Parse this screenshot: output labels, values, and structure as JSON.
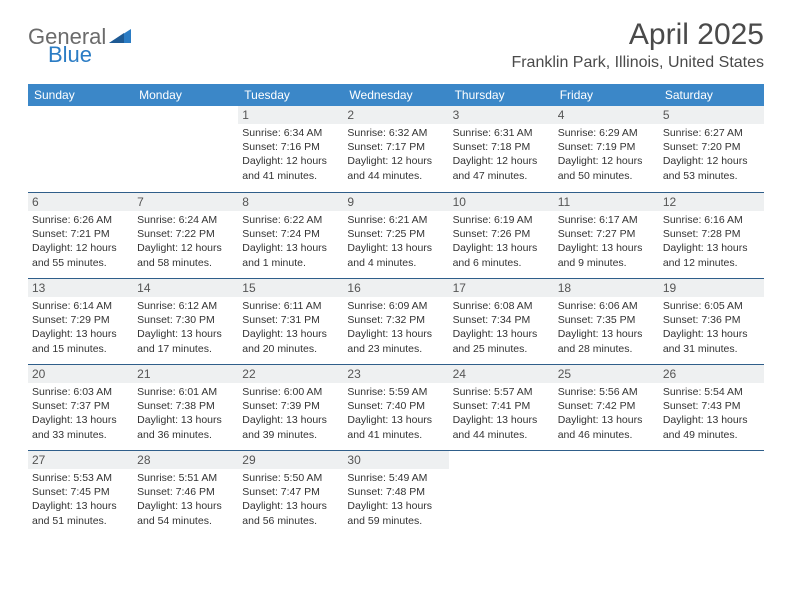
{
  "logo": {
    "word1": "General",
    "word2": "Blue"
  },
  "title": "April 2025",
  "location": "Franklin Park, Illinois, United States",
  "colors": {
    "header_bg": "#3b87c8",
    "header_text": "#ffffff",
    "daynum_bg": "#eef0f1",
    "week_border": "#2f5e8a",
    "title_color": "#4a4a4a",
    "body_text": "#333333",
    "logo_gray": "#6b6b6b",
    "logo_blue": "#2b7cc4"
  },
  "fonts": {
    "title_size_pt": 22,
    "location_size_pt": 12,
    "dow_size_pt": 9,
    "daynum_size_pt": 9,
    "body_size_pt": 8
  },
  "days_of_week": [
    "Sunday",
    "Monday",
    "Tuesday",
    "Wednesday",
    "Thursday",
    "Friday",
    "Saturday"
  ],
  "weeks": [
    [
      {
        "n": "",
        "sr": "",
        "ss": "",
        "dl": ""
      },
      {
        "n": "",
        "sr": "",
        "ss": "",
        "dl": ""
      },
      {
        "n": "1",
        "sr": "6:34 AM",
        "ss": "7:16 PM",
        "dl": "12 hours and 41 minutes."
      },
      {
        "n": "2",
        "sr": "6:32 AM",
        "ss": "7:17 PM",
        "dl": "12 hours and 44 minutes."
      },
      {
        "n": "3",
        "sr": "6:31 AM",
        "ss": "7:18 PM",
        "dl": "12 hours and 47 minutes."
      },
      {
        "n": "4",
        "sr": "6:29 AM",
        "ss": "7:19 PM",
        "dl": "12 hours and 50 minutes."
      },
      {
        "n": "5",
        "sr": "6:27 AM",
        "ss": "7:20 PM",
        "dl": "12 hours and 53 minutes."
      }
    ],
    [
      {
        "n": "6",
        "sr": "6:26 AM",
        "ss": "7:21 PM",
        "dl": "12 hours and 55 minutes."
      },
      {
        "n": "7",
        "sr": "6:24 AM",
        "ss": "7:22 PM",
        "dl": "12 hours and 58 minutes."
      },
      {
        "n": "8",
        "sr": "6:22 AM",
        "ss": "7:24 PM",
        "dl": "13 hours and 1 minute."
      },
      {
        "n": "9",
        "sr": "6:21 AM",
        "ss": "7:25 PM",
        "dl": "13 hours and 4 minutes."
      },
      {
        "n": "10",
        "sr": "6:19 AM",
        "ss": "7:26 PM",
        "dl": "13 hours and 6 minutes."
      },
      {
        "n": "11",
        "sr": "6:17 AM",
        "ss": "7:27 PM",
        "dl": "13 hours and 9 minutes."
      },
      {
        "n": "12",
        "sr": "6:16 AM",
        "ss": "7:28 PM",
        "dl": "13 hours and 12 minutes."
      }
    ],
    [
      {
        "n": "13",
        "sr": "6:14 AM",
        "ss": "7:29 PM",
        "dl": "13 hours and 15 minutes."
      },
      {
        "n": "14",
        "sr": "6:12 AM",
        "ss": "7:30 PM",
        "dl": "13 hours and 17 minutes."
      },
      {
        "n": "15",
        "sr": "6:11 AM",
        "ss": "7:31 PM",
        "dl": "13 hours and 20 minutes."
      },
      {
        "n": "16",
        "sr": "6:09 AM",
        "ss": "7:32 PM",
        "dl": "13 hours and 23 minutes."
      },
      {
        "n": "17",
        "sr": "6:08 AM",
        "ss": "7:34 PM",
        "dl": "13 hours and 25 minutes."
      },
      {
        "n": "18",
        "sr": "6:06 AM",
        "ss": "7:35 PM",
        "dl": "13 hours and 28 minutes."
      },
      {
        "n": "19",
        "sr": "6:05 AM",
        "ss": "7:36 PM",
        "dl": "13 hours and 31 minutes."
      }
    ],
    [
      {
        "n": "20",
        "sr": "6:03 AM",
        "ss": "7:37 PM",
        "dl": "13 hours and 33 minutes."
      },
      {
        "n": "21",
        "sr": "6:01 AM",
        "ss": "7:38 PM",
        "dl": "13 hours and 36 minutes."
      },
      {
        "n": "22",
        "sr": "6:00 AM",
        "ss": "7:39 PM",
        "dl": "13 hours and 39 minutes."
      },
      {
        "n": "23",
        "sr": "5:59 AM",
        "ss": "7:40 PM",
        "dl": "13 hours and 41 minutes."
      },
      {
        "n": "24",
        "sr": "5:57 AM",
        "ss": "7:41 PM",
        "dl": "13 hours and 44 minutes."
      },
      {
        "n": "25",
        "sr": "5:56 AM",
        "ss": "7:42 PM",
        "dl": "13 hours and 46 minutes."
      },
      {
        "n": "26",
        "sr": "5:54 AM",
        "ss": "7:43 PM",
        "dl": "13 hours and 49 minutes."
      }
    ],
    [
      {
        "n": "27",
        "sr": "5:53 AM",
        "ss": "7:45 PM",
        "dl": "13 hours and 51 minutes."
      },
      {
        "n": "28",
        "sr": "5:51 AM",
        "ss": "7:46 PM",
        "dl": "13 hours and 54 minutes."
      },
      {
        "n": "29",
        "sr": "5:50 AM",
        "ss": "7:47 PM",
        "dl": "13 hours and 56 minutes."
      },
      {
        "n": "30",
        "sr": "5:49 AM",
        "ss": "7:48 PM",
        "dl": "13 hours and 59 minutes."
      },
      {
        "n": "",
        "sr": "",
        "ss": "",
        "dl": ""
      },
      {
        "n": "",
        "sr": "",
        "ss": "",
        "dl": ""
      },
      {
        "n": "",
        "sr": "",
        "ss": "",
        "dl": ""
      }
    ]
  ],
  "labels": {
    "sunrise": "Sunrise:",
    "sunset": "Sunset:",
    "daylight": "Daylight:"
  }
}
